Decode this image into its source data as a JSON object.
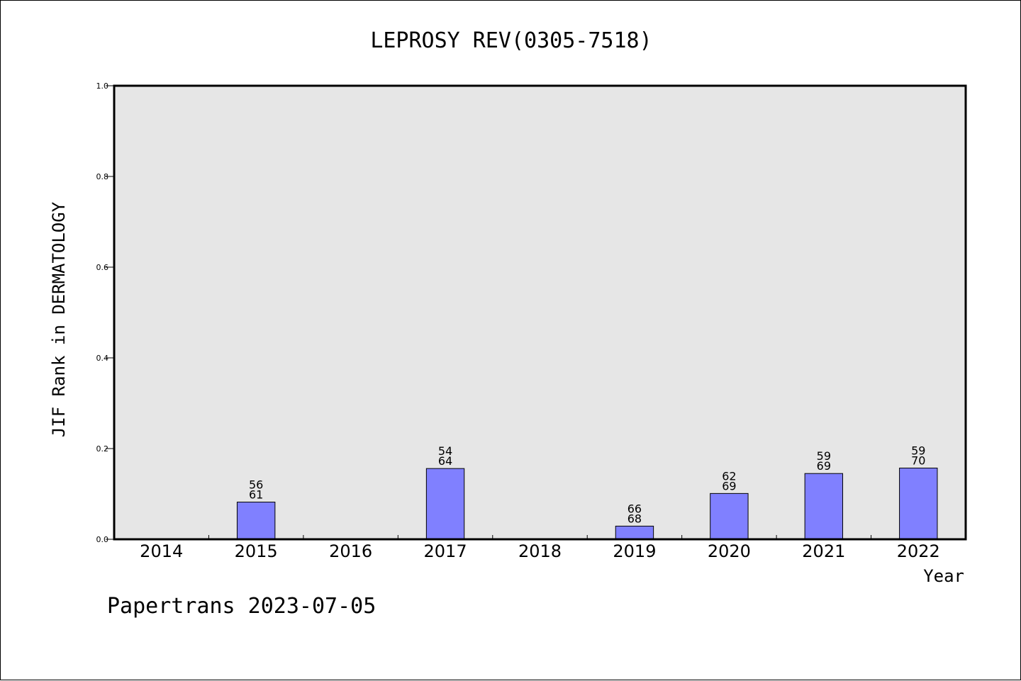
{
  "chart_data": {
    "type": "bar",
    "title": "LEPROSY REV(0305-7518)",
    "xlabel": "Year",
    "ylabel": "JIF Rank in DERMATOLOGY",
    "ylim": [
      0,
      1.0
    ],
    "yticks": [
      "0.0",
      "0.2",
      "0.4",
      "0.6",
      "0.8",
      "1.0"
    ],
    "categories": [
      "2014",
      "2015",
      "2016",
      "2017",
      "2018",
      "2019",
      "2020",
      "2021",
      "2022"
    ],
    "values": [
      null,
      0.082,
      null,
      0.156,
      null,
      0.029,
      0.101,
      0.145,
      0.157
    ],
    "labels": [
      null,
      [
        "56",
        "61"
      ],
      null,
      [
        "54",
        "64"
      ],
      null,
      [
        "66",
        "68"
      ],
      [
        "62",
        "69"
      ],
      [
        "59",
        "69"
      ],
      [
        "59",
        "70"
      ]
    ],
    "grid": false,
    "colors": {
      "bar": "#8080ff",
      "plot_background": "#e6e6e6",
      "axis": "#000000"
    }
  },
  "footer": {
    "watermark": "Papertrans 2023-07-05"
  }
}
